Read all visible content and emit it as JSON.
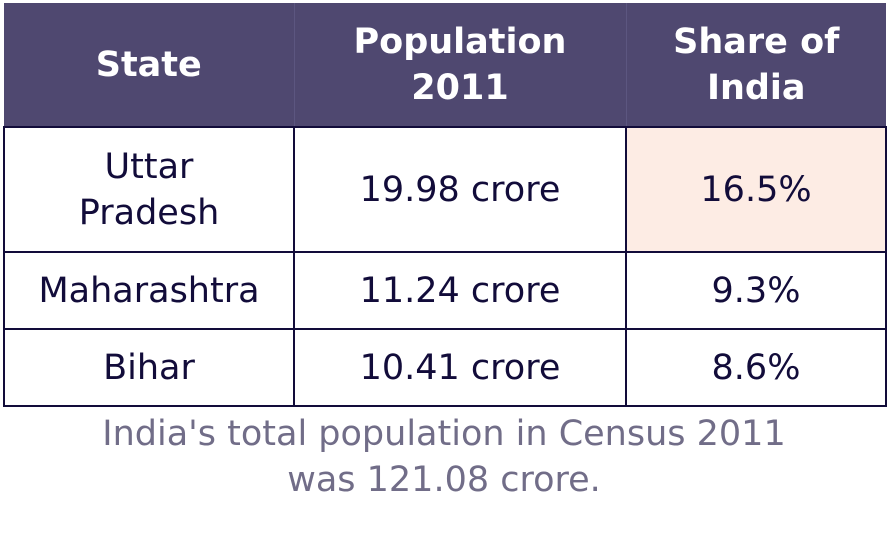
{
  "table": {
    "headers": [
      "State",
      "Population\n2011",
      "Share of\nIndia"
    ],
    "rows": [
      [
        "Uttar\nPradesh",
        "19.98 crore",
        "16.5%"
      ],
      [
        "Maharashtra",
        "11.24 crore",
        "9.3%"
      ],
      [
        "Bihar",
        "10.41 crore",
        "8.6%"
      ]
    ],
    "highlighted_cell": "16.5%"
  },
  "note": {
    "line1": "India's total population in Census 2011",
    "line2": "was 121.08 crore."
  },
  "colors": {
    "header_bg": "#4f4870",
    "header_text": "#ffffff",
    "cell_text": "#120c3a",
    "border": "#120c3a",
    "highlight_bg": "#fdece4",
    "note_text": "#716d88"
  }
}
